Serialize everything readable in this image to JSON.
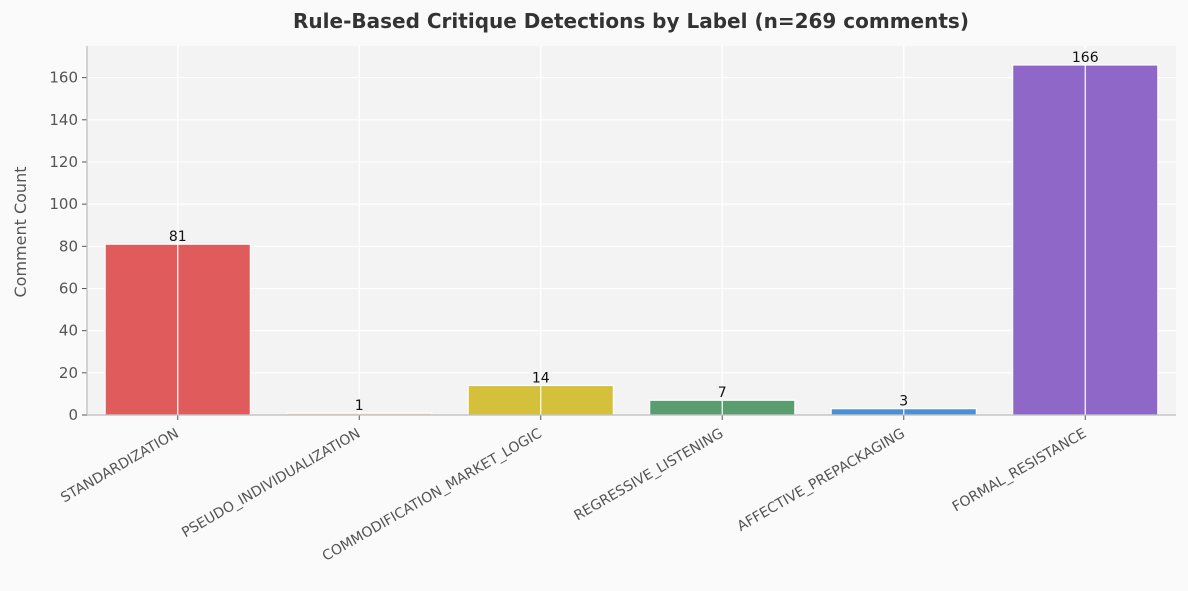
{
  "chart_data": {
    "type": "bar",
    "title": "Rule-Based Critique Detections by Label  (n=269 comments)",
    "xlabel": "",
    "ylabel": "Comment Count",
    "categories": [
      "STANDARDIZATION",
      "PSEUDO_INDIVIDUALIZATION",
      "COMMODIFICATION_MARKET_LOGIC",
      "REGRESSIVE_LISTENING",
      "AFFECTIVE_PREPACKAGING",
      "FORMAL_RESISTANCE"
    ],
    "values": [
      81,
      1,
      14,
      7,
      3,
      166
    ],
    "colors": [
      "#e05c5c",
      "#f3ddc4",
      "#d4c03a",
      "#5a9e6f",
      "#4a90d9",
      "#8e67c8"
    ],
    "ylim": [
      0,
      175
    ],
    "yticks": [
      0,
      20,
      40,
      60,
      80,
      100,
      120,
      140,
      160
    ],
    "grid": true,
    "legend": "none"
  }
}
